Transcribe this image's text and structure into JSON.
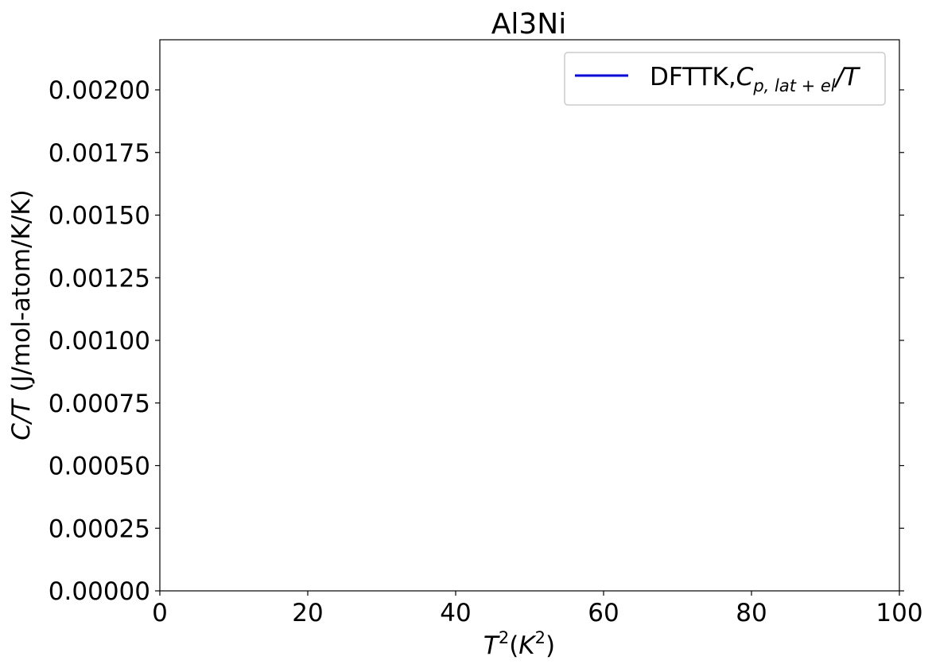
{
  "chart_data": {
    "type": "line",
    "title": "Al3Ni",
    "xlabel": {
      "base": "T",
      "sup": "2",
      "open": "(",
      "unit_base": "K",
      "unit_sup": "2",
      "close": ")"
    },
    "ylabel": {
      "italic_part": "C/T",
      "plain_part": " (J/mol-atom/K/K)"
    },
    "xlim": [
      0,
      100
    ],
    "ylim": [
      0,
      0.0022
    ],
    "xticks": [
      0,
      20,
      40,
      60,
      80,
      100
    ],
    "xtick_labels": [
      "0",
      "20",
      "40",
      "60",
      "80",
      "100"
    ],
    "yticks": [
      0,
      0.00025,
      0.0005,
      0.00075,
      0.001,
      0.00125,
      0.0015,
      0.00175,
      0.002
    ],
    "ytick_labels": [
      "0.00000",
      "0.00025",
      "0.00050",
      "0.00075",
      "0.00100",
      "0.00125",
      "0.00150",
      "0.00175",
      "0.00200"
    ],
    "grid": false,
    "legend_position": "top-right",
    "series": [
      {
        "legend_prefix": "DFTTK,",
        "legend_math_base": "C",
        "legend_math_sub": "p, lat + el",
        "legend_math_suffix": "/T",
        "color": "#0000ff",
        "x": [],
        "y": []
      }
    ]
  }
}
